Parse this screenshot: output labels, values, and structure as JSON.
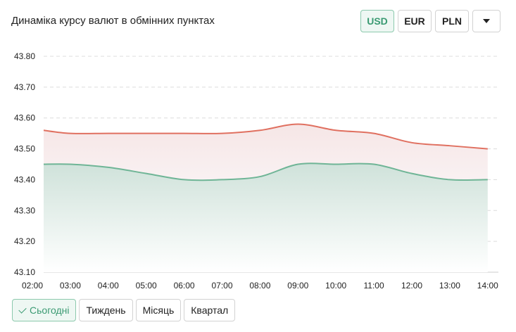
{
  "header": {
    "title": "Динаміка курсу валют в обмінних пунктах"
  },
  "currencies": [
    {
      "label": "USD",
      "active": true
    },
    {
      "label": "EUR",
      "active": false
    },
    {
      "label": "PLN",
      "active": false
    }
  ],
  "more_icon": "chevron-down-icon",
  "periods": [
    {
      "label": "Сьогодні",
      "active": true
    },
    {
      "label": "Тиждень",
      "active": false
    },
    {
      "label": "Місяць",
      "active": false
    },
    {
      "label": "Квартал",
      "active": false
    }
  ],
  "colors": {
    "accent": "#3a9a72",
    "sell": "#e07060",
    "buy": "#6fb596"
  },
  "chart_data": {
    "type": "area",
    "x": [
      "02:00",
      "03:00",
      "04:00",
      "05:00",
      "06:00",
      "07:00",
      "08:00",
      "09:00",
      "10:00",
      "11:00",
      "12:00",
      "13:00",
      "14:00"
    ],
    "series": [
      {
        "key": "sell",
        "values": [
          43.56,
          43.55,
          43.55,
          43.55,
          43.55,
          43.55,
          43.56,
          43.58,
          43.56,
          43.55,
          43.52,
          43.51,
          43.5
        ]
      },
      {
        "key": "buy",
        "values": [
          43.45,
          43.45,
          43.44,
          43.42,
          43.4,
          43.4,
          43.41,
          43.45,
          43.45,
          43.45,
          43.42,
          43.4,
          43.4
        ]
      }
    ],
    "y_ticks": [
      "43.80",
      "43.70",
      "43.60",
      "43.50",
      "43.40",
      "43.30",
      "43.20",
      "43.10"
    ],
    "ylim": [
      43.1,
      43.8
    ],
    "grid": true
  }
}
